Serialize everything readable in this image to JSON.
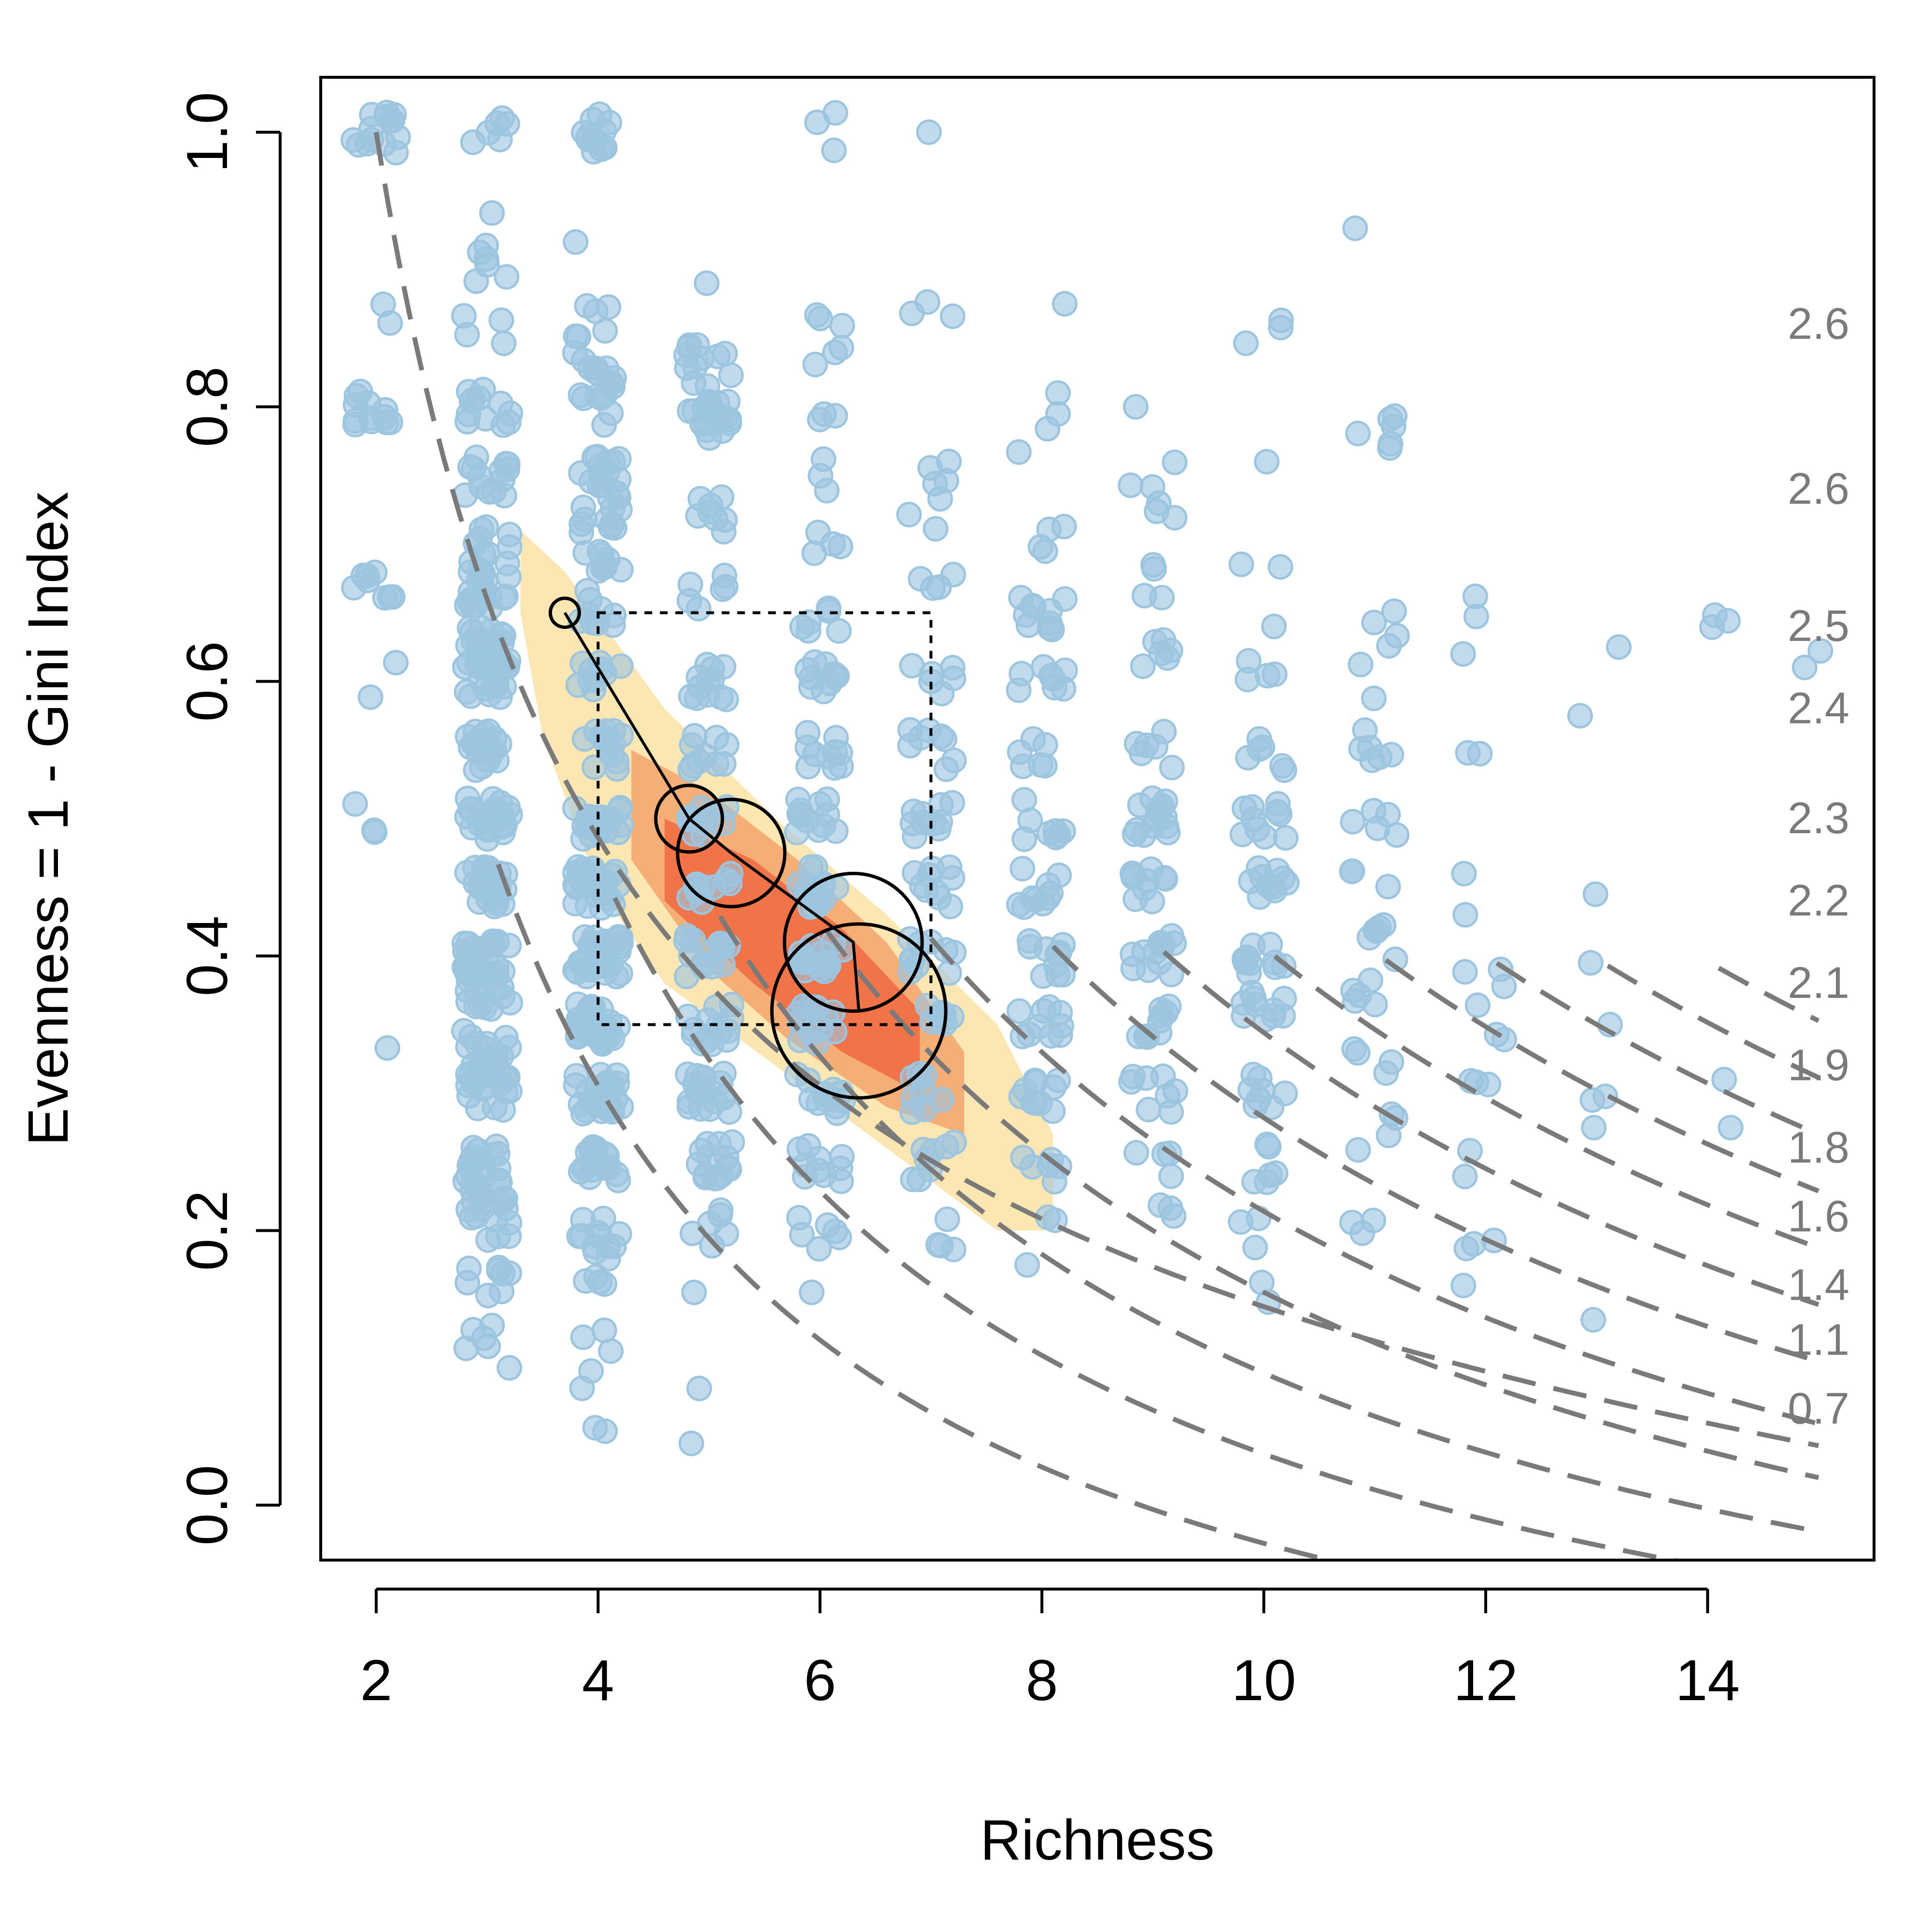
{
  "chart_data": {
    "type": "scatter",
    "title": "",
    "xlabel": "Richness",
    "ylabel": "Evenness = 1 - Gini Index",
    "xlim": [
      1.5,
      15.5
    ],
    "ylim": [
      -0.04,
      1.04
    ],
    "x_ticks": [
      2,
      4,
      6,
      8,
      10,
      12,
      14
    ],
    "y_ticks": [
      0.0,
      0.2,
      0.4,
      0.6,
      0.8,
      1.0
    ],
    "x_tick_labels": [
      "2",
      "4",
      "6",
      "8",
      "10",
      "12",
      "14"
    ],
    "y_tick_labels": [
      "0.0",
      "0.2",
      "0.4",
      "0.6",
      "0.8",
      "1.0"
    ],
    "grid": false,
    "legend": "none",
    "colors": {
      "points": "#9cc5e0",
      "density_low": "#fbe3a6",
      "density_mid": "#f5a36c",
      "density_high": "#ef6a40",
      "contours": "#7a7a7a",
      "trajectory": "#000000"
    },
    "scatter_points": [
      {
        "x": 2,
        "y": 1.0,
        "n": 14
      },
      {
        "x": 2,
        "y": 0.8,
        "n": 12
      },
      {
        "x": 2,
        "y": 0.667,
        "n": 8
      },
      {
        "x": 2,
        "y": 0.5,
        "n": 3
      },
      {
        "x": 2,
        "y": 0.875,
        "n": 2
      },
      {
        "x": 2,
        "y": 0.6,
        "n": 2
      },
      {
        "x": 2,
        "y": 0.333,
        "n": 1
      },
      {
        "x": 3,
        "y": 1.0,
        "n": 6
      },
      {
        "x": 3,
        "y": 0.9,
        "n": 5
      },
      {
        "x": 3,
        "y": 0.8,
        "n": 12
      },
      {
        "x": 3,
        "y": 0.75,
        "n": 14
      },
      {
        "x": 3,
        "y": 0.7,
        "n": 10
      },
      {
        "x": 3,
        "y": 0.667,
        "n": 20
      },
      {
        "x": 3,
        "y": 0.625,
        "n": 18
      },
      {
        "x": 3,
        "y": 0.6,
        "n": 22
      },
      {
        "x": 3,
        "y": 0.55,
        "n": 18
      },
      {
        "x": 3,
        "y": 0.5,
        "n": 22
      },
      {
        "x": 3,
        "y": 0.45,
        "n": 26
      },
      {
        "x": 3,
        "y": 0.4,
        "n": 26
      },
      {
        "x": 3,
        "y": 0.375,
        "n": 18
      },
      {
        "x": 3,
        "y": 0.333,
        "n": 18
      },
      {
        "x": 3,
        "y": 0.3,
        "n": 18
      },
      {
        "x": 3,
        "y": 0.25,
        "n": 14
      },
      {
        "x": 3,
        "y": 0.222,
        "n": 18
      },
      {
        "x": 3,
        "y": 0.2,
        "n": 4
      },
      {
        "x": 3,
        "y": 0.16,
        "n": 8
      },
      {
        "x": 3,
        "y": 0.125,
        "n": 5
      },
      {
        "x": 3,
        "y": 0.1,
        "n": 1
      },
      {
        "x": 3,
        "y": 0.93,
        "n": 2
      },
      {
        "x": 3,
        "y": 0.86,
        "n": 4
      },
      {
        "x": 4,
        "y": 1.0,
        "n": 12
      },
      {
        "x": 4,
        "y": 0.86,
        "n": 6
      },
      {
        "x": 4,
        "y": 0.83,
        "n": 10
      },
      {
        "x": 4,
        "y": 0.8,
        "n": 8
      },
      {
        "x": 4,
        "y": 0.75,
        "n": 14
      },
      {
        "x": 4,
        "y": 0.72,
        "n": 12
      },
      {
        "x": 4,
        "y": 0.68,
        "n": 10
      },
      {
        "x": 4,
        "y": 0.65,
        "n": 8
      },
      {
        "x": 4,
        "y": 0.6,
        "n": 10
      },
      {
        "x": 4,
        "y": 0.55,
        "n": 14
      },
      {
        "x": 4,
        "y": 0.5,
        "n": 22
      },
      {
        "x": 4,
        "y": 0.45,
        "n": 28
      },
      {
        "x": 4,
        "y": 0.4,
        "n": 34
      },
      {
        "x": 4,
        "y": 0.35,
        "n": 34
      },
      {
        "x": 4,
        "y": 0.3,
        "n": 28
      },
      {
        "x": 4,
        "y": 0.25,
        "n": 16
      },
      {
        "x": 4,
        "y": 0.2,
        "n": 10
      },
      {
        "x": 4,
        "y": 0.17,
        "n": 6
      },
      {
        "x": 4,
        "y": 0.12,
        "n": 3
      },
      {
        "x": 4,
        "y": 0.09,
        "n": 2
      },
      {
        "x": 4,
        "y": 0.06,
        "n": 2
      },
      {
        "x": 4,
        "y": 0.92,
        "n": 1
      },
      {
        "x": 5,
        "y": 0.89,
        "n": 1
      },
      {
        "x": 5,
        "y": 0.83,
        "n": 12
      },
      {
        "x": 5,
        "y": 0.8,
        "n": 8
      },
      {
        "x": 5,
        "y": 0.79,
        "n": 10
      },
      {
        "x": 5,
        "y": 0.72,
        "n": 8
      },
      {
        "x": 5,
        "y": 0.667,
        "n": 6
      },
      {
        "x": 5,
        "y": 0.6,
        "n": 12
      },
      {
        "x": 5,
        "y": 0.55,
        "n": 10
      },
      {
        "x": 5,
        "y": 0.5,
        "n": 10
      },
      {
        "x": 5,
        "y": 0.45,
        "n": 10
      },
      {
        "x": 5,
        "y": 0.4,
        "n": 14
      },
      {
        "x": 5,
        "y": 0.35,
        "n": 14
      },
      {
        "x": 5,
        "y": 0.3,
        "n": 18
      },
      {
        "x": 5,
        "y": 0.25,
        "n": 14
      },
      {
        "x": 5,
        "y": 0.2,
        "n": 6
      },
      {
        "x": 5,
        "y": 0.155,
        "n": 1
      },
      {
        "x": 5,
        "y": 0.085,
        "n": 1
      },
      {
        "x": 5,
        "y": 0.045,
        "n": 1
      },
      {
        "x": 6,
        "y": 1.0,
        "n": 3
      },
      {
        "x": 6,
        "y": 0.857,
        "n": 4
      },
      {
        "x": 6,
        "y": 0.833,
        "n": 2
      },
      {
        "x": 6,
        "y": 0.8,
        "n": 3
      },
      {
        "x": 6,
        "y": 0.75,
        "n": 3
      },
      {
        "x": 6,
        "y": 0.7,
        "n": 4
      },
      {
        "x": 6,
        "y": 0.65,
        "n": 6
      },
      {
        "x": 6,
        "y": 0.6,
        "n": 10
      },
      {
        "x": 6,
        "y": 0.55,
        "n": 10
      },
      {
        "x": 6,
        "y": 0.5,
        "n": 12
      },
      {
        "x": 6,
        "y": 0.45,
        "n": 14
      },
      {
        "x": 6,
        "y": 0.4,
        "n": 14
      },
      {
        "x": 6,
        "y": 0.35,
        "n": 12
      },
      {
        "x": 6,
        "y": 0.3,
        "n": 12
      },
      {
        "x": 6,
        "y": 0.25,
        "n": 10
      },
      {
        "x": 6,
        "y": 0.2,
        "n": 6
      },
      {
        "x": 6,
        "y": 0.155,
        "n": 1
      },
      {
        "x": 7,
        "y": 1.0,
        "n": 1
      },
      {
        "x": 7,
        "y": 0.875,
        "n": 3
      },
      {
        "x": 7,
        "y": 0.75,
        "n": 4
      },
      {
        "x": 7,
        "y": 0.72,
        "n": 3
      },
      {
        "x": 7,
        "y": 0.67,
        "n": 4
      },
      {
        "x": 7,
        "y": 0.6,
        "n": 6
      },
      {
        "x": 7,
        "y": 0.55,
        "n": 8
      },
      {
        "x": 7,
        "y": 0.5,
        "n": 10
      },
      {
        "x": 7,
        "y": 0.45,
        "n": 10
      },
      {
        "x": 7,
        "y": 0.4,
        "n": 10
      },
      {
        "x": 7,
        "y": 0.35,
        "n": 8
      },
      {
        "x": 7,
        "y": 0.3,
        "n": 8
      },
      {
        "x": 7,
        "y": 0.25,
        "n": 8
      },
      {
        "x": 7,
        "y": 0.2,
        "n": 4
      },
      {
        "x": 8,
        "y": 0.875,
        "n": 1
      },
      {
        "x": 8,
        "y": 0.81,
        "n": 1
      },
      {
        "x": 8,
        "y": 0.78,
        "n": 3
      },
      {
        "x": 8,
        "y": 0.7,
        "n": 4
      },
      {
        "x": 8,
        "y": 0.65,
        "n": 10
      },
      {
        "x": 8,
        "y": 0.6,
        "n": 8
      },
      {
        "x": 8,
        "y": 0.55,
        "n": 6
      },
      {
        "x": 8,
        "y": 0.5,
        "n": 8
      },
      {
        "x": 8,
        "y": 0.45,
        "n": 10
      },
      {
        "x": 8,
        "y": 0.4,
        "n": 10
      },
      {
        "x": 8,
        "y": 0.35,
        "n": 10
      },
      {
        "x": 8,
        "y": 0.3,
        "n": 10
      },
      {
        "x": 8,
        "y": 0.25,
        "n": 6
      },
      {
        "x": 8,
        "y": 0.21,
        "n": 2
      },
      {
        "x": 8,
        "y": 0.175,
        "n": 1
      },
      {
        "x": 9,
        "y": 0.8,
        "n": 1
      },
      {
        "x": 9,
        "y": 0.75,
        "n": 3
      },
      {
        "x": 9,
        "y": 0.72,
        "n": 3
      },
      {
        "x": 9,
        "y": 0.67,
        "n": 4
      },
      {
        "x": 9,
        "y": 0.62,
        "n": 6
      },
      {
        "x": 9,
        "y": 0.55,
        "n": 6
      },
      {
        "x": 9,
        "y": 0.5,
        "n": 14
      },
      {
        "x": 9,
        "y": 0.45,
        "n": 10
      },
      {
        "x": 9,
        "y": 0.4,
        "n": 12
      },
      {
        "x": 9,
        "y": 0.35,
        "n": 10
      },
      {
        "x": 9,
        "y": 0.3,
        "n": 8
      },
      {
        "x": 9,
        "y": 0.25,
        "n": 4
      },
      {
        "x": 9,
        "y": 0.21,
        "n": 3
      },
      {
        "x": 10,
        "y": 0.85,
        "n": 3
      },
      {
        "x": 10,
        "y": 0.76,
        "n": 1
      },
      {
        "x": 10,
        "y": 0.69,
        "n": 2
      },
      {
        "x": 10,
        "y": 0.64,
        "n": 1
      },
      {
        "x": 10,
        "y": 0.6,
        "n": 4
      },
      {
        "x": 10,
        "y": 0.55,
        "n": 6
      },
      {
        "x": 10,
        "y": 0.5,
        "n": 10
      },
      {
        "x": 10,
        "y": 0.45,
        "n": 10
      },
      {
        "x": 10,
        "y": 0.4,
        "n": 10
      },
      {
        "x": 10,
        "y": 0.36,
        "n": 10
      },
      {
        "x": 10,
        "y": 0.3,
        "n": 8
      },
      {
        "x": 10,
        "y": 0.25,
        "n": 6
      },
      {
        "x": 10,
        "y": 0.2,
        "n": 3
      },
      {
        "x": 10,
        "y": 0.16,
        "n": 2
      },
      {
        "x": 11,
        "y": 0.93,
        "n": 1
      },
      {
        "x": 11,
        "y": 0.78,
        "n": 6
      },
      {
        "x": 11,
        "y": 0.64,
        "n": 4
      },
      {
        "x": 11,
        "y": 0.6,
        "n": 2
      },
      {
        "x": 11,
        "y": 0.55,
        "n": 6
      },
      {
        "x": 11,
        "y": 0.5,
        "n": 5
      },
      {
        "x": 11,
        "y": 0.45,
        "n": 3
      },
      {
        "x": 11,
        "y": 0.41,
        "n": 6
      },
      {
        "x": 11,
        "y": 0.37,
        "n": 5
      },
      {
        "x": 11,
        "y": 0.32,
        "n": 4
      },
      {
        "x": 11,
        "y": 0.27,
        "n": 4
      },
      {
        "x": 11,
        "y": 0.21,
        "n": 3
      },
      {
        "x": 12,
        "y": 0.65,
        "n": 2
      },
      {
        "x": 12,
        "y": 0.62,
        "n": 1
      },
      {
        "x": 12,
        "y": 0.54,
        "n": 2
      },
      {
        "x": 12,
        "y": 0.46,
        "n": 1
      },
      {
        "x": 12,
        "y": 0.43,
        "n": 1
      },
      {
        "x": 12,
        "y": 0.39,
        "n": 3
      },
      {
        "x": 12,
        "y": 0.35,
        "n": 3
      },
      {
        "x": 12,
        "y": 0.31,
        "n": 3
      },
      {
        "x": 12,
        "y": 0.25,
        "n": 2
      },
      {
        "x": 12,
        "y": 0.19,
        "n": 3
      },
      {
        "x": 12,
        "y": 0.16,
        "n": 1
      },
      {
        "x": 13,
        "y": 0.625,
        "n": 1
      },
      {
        "x": 13,
        "y": 0.575,
        "n": 1
      },
      {
        "x": 13,
        "y": 0.445,
        "n": 1
      },
      {
        "x": 13,
        "y": 0.395,
        "n": 1
      },
      {
        "x": 13,
        "y": 0.35,
        "n": 1
      },
      {
        "x": 13,
        "y": 0.3,
        "n": 2
      },
      {
        "x": 13,
        "y": 0.275,
        "n": 1
      },
      {
        "x": 13,
        "y": 0.135,
        "n": 1
      },
      {
        "x": 14,
        "y": 0.645,
        "n": 3
      },
      {
        "x": 14,
        "y": 0.31,
        "n": 1
      },
      {
        "x": 14,
        "y": 0.275,
        "n": 1
      },
      {
        "x": 15,
        "y": 0.61,
        "n": 2
      }
    ],
    "density_region": {
      "outer": [
        [
          3.3,
          0.71
        ],
        [
          3.7,
          0.68
        ],
        [
          4.6,
          0.58
        ],
        [
          5.6,
          0.5
        ],
        [
          6.6,
          0.43
        ],
        [
          7.6,
          0.35
        ],
        [
          8.1,
          0.27
        ],
        [
          8.1,
          0.2
        ],
        [
          7.6,
          0.2
        ],
        [
          6.6,
          0.26
        ],
        [
          5.6,
          0.32
        ],
        [
          4.6,
          0.38
        ],
        [
          4.0,
          0.45
        ],
        [
          3.5,
          0.56
        ],
        [
          3.3,
          0.65
        ]
      ],
      "middle": [
        [
          4.3,
          0.55
        ],
        [
          5.0,
          0.52
        ],
        [
          5.8,
          0.47
        ],
        [
          6.6,
          0.41
        ],
        [
          7.3,
          0.33
        ],
        [
          7.3,
          0.27
        ],
        [
          6.6,
          0.29
        ],
        [
          5.7,
          0.34
        ],
        [
          5.0,
          0.39
        ],
        [
          4.3,
          0.47
        ]
      ],
      "inner": [
        [
          4.6,
          0.5
        ],
        [
          5.4,
          0.47
        ],
        [
          6.2,
          0.42
        ],
        [
          6.9,
          0.36
        ],
        [
          6.9,
          0.3
        ],
        [
          6.2,
          0.33
        ],
        [
          5.4,
          0.38
        ],
        [
          4.6,
          0.44
        ]
      ]
    },
    "trajectory": [
      {
        "x": 3.7,
        "y": 0.65,
        "size": 1.0
      },
      {
        "x": 4.82,
        "y": 0.5,
        "size": 2.3
      },
      {
        "x": 5.2,
        "y": 0.475,
        "size": 3.7
      },
      {
        "x": 6.3,
        "y": 0.41,
        "size": 4.75
      },
      {
        "x": 6.35,
        "y": 0.36,
        "size": 6.0
      }
    ],
    "reference_box": {
      "x": [
        4,
        7
      ],
      "y": [
        0.35,
        0.65
      ]
    },
    "contours": [
      {
        "label": "0.7",
        "richness_start": 2.0
      },
      {
        "label": "1.1",
        "richness_start": 3.1
      },
      {
        "label": "1.4",
        "richness_start": 4.15
      },
      {
        "label": "1.6",
        "richness_start": 5.1
      },
      {
        "label": "1.8",
        "richness_start": 6.05
      },
      {
        "label": "1.9",
        "richness_start": 7.0
      },
      {
        "label": "2.1",
        "richness_start": 8.1
      },
      {
        "label": "2.2",
        "richness_start": 9.1
      },
      {
        "label": "2.3",
        "richness_start": 10.1
      },
      {
        "label": "2.4",
        "richness_start": 11.1
      },
      {
        "label": "2.5",
        "richness_start": 12.1
      },
      {
        "label": "2.6",
        "richness_start": 13.1
      },
      {
        "label": "2.6",
        "richness_start": 14.1
      }
    ]
  }
}
